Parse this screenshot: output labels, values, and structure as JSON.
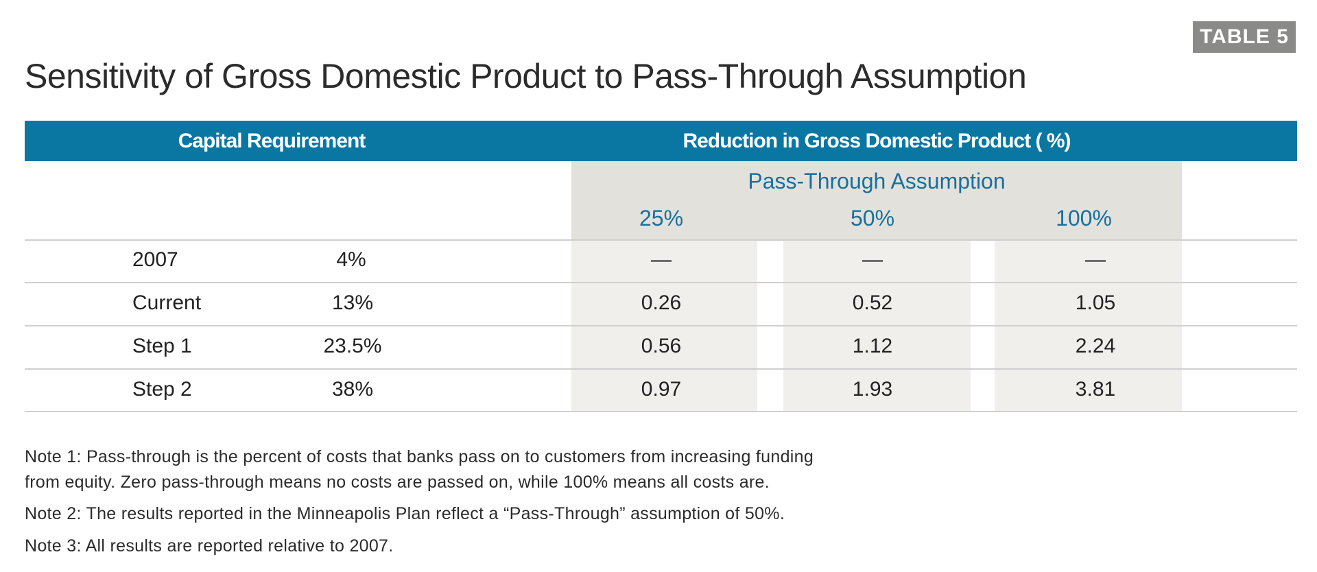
{
  "badge": "TABLE 5",
  "title": "Sensitivity of Gross Domestic Product to Pass-Through Assumption",
  "header": {
    "left": "Capital Requirement",
    "right": "Reduction in Gross Domestic Product  ( %)"
  },
  "subheader": {
    "group": "Pass-Through Assumption",
    "columns": [
      "25%",
      "50%",
      "100%"
    ]
  },
  "rows": [
    {
      "label": "2007",
      "requirement": "4%",
      "values": [
        "—",
        "—",
        "—"
      ]
    },
    {
      "label": "Current",
      "requirement": "13%",
      "values": [
        "0.26",
        "0.52",
        "1.05"
      ]
    },
    {
      "label": "Step 1",
      "requirement": "23.5%",
      "values": [
        "0.56",
        "1.12",
        "2.24"
      ]
    },
    {
      "label": "Step 2",
      "requirement": "38%",
      "values": [
        "0.97",
        "1.93",
        "3.81"
      ]
    }
  ],
  "notes": [
    "Note 1: Pass-through is the percent of costs that banks pass on to customers from increasing funding",
    "from equity. Zero pass-through means no costs are passed on, while 100% means all costs are.",
    "Note 2: The results reported in the Minneapolis Plan reflect a “Pass-Through” assumption of 50%.",
    "Note 3: All results are reported relative to 2007."
  ],
  "colors": {
    "header_bg": "#0a77a3",
    "accent_text": "#17709c",
    "badge_bg": "#8a8a89",
    "shade_light": "#f0efec",
    "shade_dark": "#e3e1dc"
  }
}
